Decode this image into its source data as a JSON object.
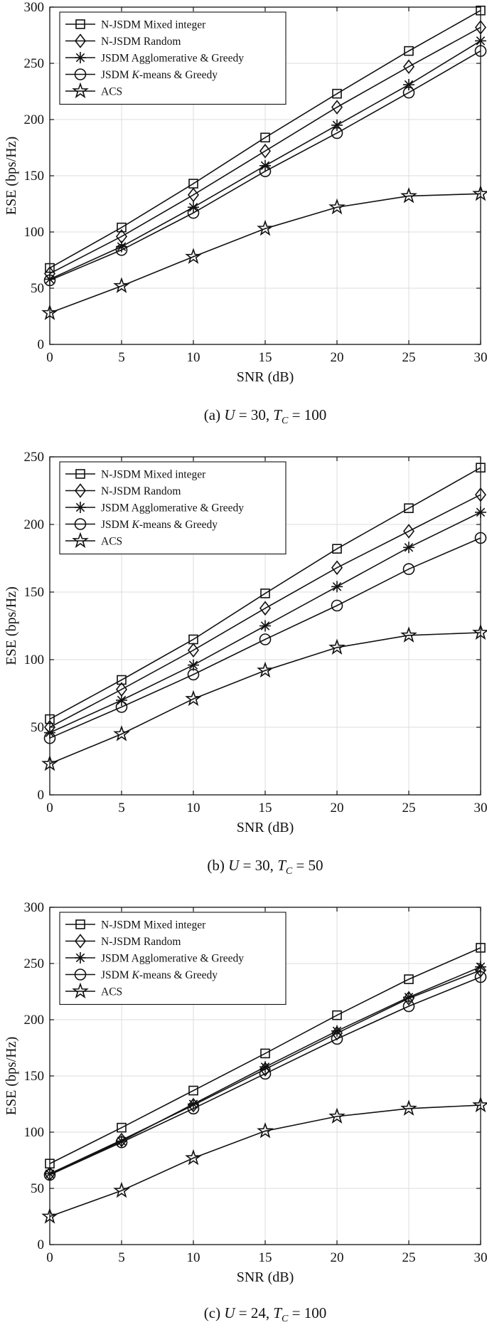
{
  "chart_data": [
    {
      "type": "line",
      "caption": "(a) U = 30, T_C = 100",
      "caption_parts": {
        "prefix": "(a) ",
        "var1": "U",
        "eq1": " = 30, ",
        "var2": "T",
        "sub2": "C",
        "eq2": " = 100"
      },
      "xlabel": "SNR (dB)",
      "ylabel": "ESE (bps/Hz)",
      "xlim": [
        0,
        30
      ],
      "ylim": [
        0,
        300
      ],
      "xticks": [
        0,
        5,
        10,
        15,
        20,
        25,
        30
      ],
      "yticks": [
        0,
        50,
        100,
        150,
        200,
        250,
        300
      ],
      "grid": true,
      "legend_position": "top-left",
      "x": [
        0,
        5,
        10,
        15,
        20,
        25,
        30
      ],
      "series": [
        {
          "name": "N-JSDM Mixed integer",
          "marker": "square",
          "values": [
            68,
            104,
            143,
            184,
            223,
            261,
            297
          ]
        },
        {
          "name": "N-JSDM Random",
          "marker": "diamond",
          "values": [
            63,
            96,
            133,
            172,
            211,
            247,
            282
          ]
        },
        {
          "name": "JSDM Agglomerative & Greedy",
          "marker": "asterisk",
          "values": [
            58,
            87,
            122,
            159,
            195,
            231,
            270
          ]
        },
        {
          "name": "JSDM K-means & Greedy",
          "marker": "circle",
          "values": [
            57,
            84,
            117,
            154,
            188,
            224,
            261
          ]
        },
        {
          "name": "ACS",
          "marker": "star",
          "values": [
            28,
            52,
            78,
            103,
            122,
            132,
            134
          ]
        }
      ]
    },
    {
      "type": "line",
      "caption": "(b) U = 30, T_C = 50",
      "caption_parts": {
        "prefix": "(b) ",
        "var1": "U",
        "eq1": " = 30, ",
        "var2": "T",
        "sub2": "C",
        "eq2": " = 50"
      },
      "xlabel": "SNR (dB)",
      "ylabel": "ESE (bps/Hz)",
      "xlim": [
        0,
        30
      ],
      "ylim": [
        0,
        250
      ],
      "xticks": [
        0,
        5,
        10,
        15,
        20,
        25,
        30
      ],
      "yticks": [
        0,
        50,
        100,
        150,
        200,
        250
      ],
      "grid": true,
      "legend_position": "top-left",
      "x": [
        0,
        5,
        10,
        15,
        20,
        25,
        30
      ],
      "series": [
        {
          "name": "N-JSDM Mixed integer",
          "marker": "square",
          "values": [
            56,
            85,
            115,
            149,
            182,
            212,
            242
          ]
        },
        {
          "name": "N-JSDM Random",
          "marker": "diamond",
          "values": [
            50,
            78,
            107,
            138,
            168,
            195,
            222
          ]
        },
        {
          "name": "JSDM Agglomerative & Greedy",
          "marker": "asterisk",
          "values": [
            46,
            70,
            96,
            125,
            154,
            183,
            209
          ]
        },
        {
          "name": "JSDM K-means & Greedy",
          "marker": "circle",
          "values": [
            42,
            65,
            89,
            115,
            140,
            167,
            190
          ]
        },
        {
          "name": "ACS",
          "marker": "star",
          "values": [
            23,
            45,
            71,
            92,
            109,
            118,
            120
          ]
        }
      ]
    },
    {
      "type": "line",
      "caption": "(c) U = 24, T_C = 100",
      "caption_parts": {
        "prefix": "(c) ",
        "var1": "U",
        "eq1": " = 24, ",
        "var2": "T",
        "sub2": "C",
        "eq2": " = 100"
      },
      "xlabel": "SNR (dB)",
      "ylabel": "ESE (bps/Hz)",
      "xlim": [
        0,
        30
      ],
      "ylim": [
        0,
        300
      ],
      "xticks": [
        0,
        5,
        10,
        15,
        20,
        25,
        30
      ],
      "yticks": [
        0,
        50,
        100,
        150,
        200,
        250,
        300
      ],
      "grid": true,
      "legend_position": "top-left",
      "x": [
        0,
        5,
        10,
        15,
        20,
        25,
        30
      ],
      "series": [
        {
          "name": "N-JSDM Mixed integer",
          "marker": "square",
          "values": [
            72,
            104,
            137,
            170,
            204,
            236,
            264
          ]
        },
        {
          "name": "N-JSDM Random",
          "marker": "diamond",
          "values": [
            63,
            93,
            124,
            156,
            188,
            219,
            244
          ]
        },
        {
          "name": "JSDM Agglomerative & Greedy",
          "marker": "asterisk",
          "values": [
            63,
            92,
            125,
            158,
            190,
            220,
            247
          ]
        },
        {
          "name": "JSDM K-means & Greedy",
          "marker": "circle",
          "values": [
            62,
            91,
            121,
            152,
            183,
            212,
            238
          ]
        },
        {
          "name": "ACS",
          "marker": "star",
          "values": [
            25,
            48,
            77,
            101,
            114,
            121,
            124
          ]
        }
      ]
    }
  ]
}
